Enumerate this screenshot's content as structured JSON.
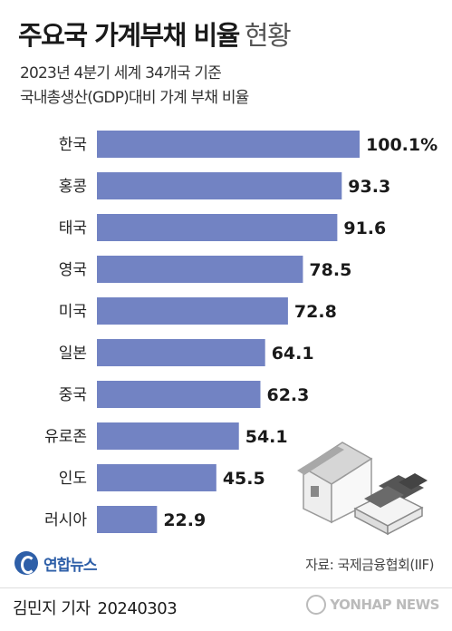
{
  "title": {
    "main": "주요국 가계부채 비율",
    "suffix": "현황"
  },
  "subtitle": {
    "line1": "2023년 4분기 세계 34개국 기준",
    "line2": "국내총생산(GDP)대비 가계 부채 비율"
  },
  "chart_data": {
    "type": "bar",
    "orientation": "horizontal",
    "categories": [
      "한국",
      "홍콩",
      "태국",
      "영국",
      "미국",
      "일본",
      "중국",
      "유로존",
      "인도",
      "러시아"
    ],
    "values": [
      100.1,
      93.3,
      91.6,
      78.5,
      72.8,
      64.1,
      62.3,
      54.1,
      45.5,
      22.9
    ],
    "value_labels": [
      "100.1%",
      "93.3",
      "91.6",
      "78.5",
      "72.8",
      "64.1",
      "62.3",
      "54.1",
      "45.5",
      "22.9"
    ],
    "unit": "%",
    "bar_color": "#7283c3",
    "xlim": [
      0,
      100.1
    ],
    "grid": false,
    "legend": "none"
  },
  "footer": {
    "logo_text": "연합뉴스",
    "source": "자료: 국제금융협회(IIF)",
    "byline": "김민지 기자",
    "date": "20240303",
    "watermark": "YONHAP NEWS"
  },
  "colors": {
    "bar": "#7283c3",
    "brand": "#2e5fa8"
  }
}
